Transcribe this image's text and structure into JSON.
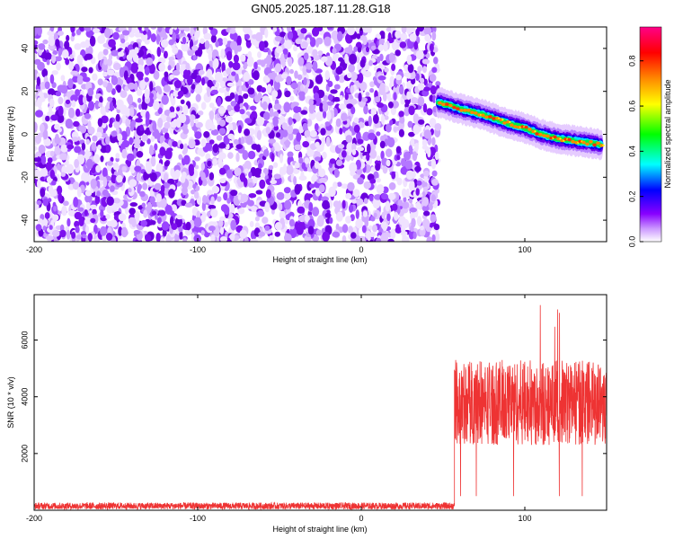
{
  "title": "GN05.2025.187.11.28.G18",
  "chart_data": [
    {
      "type": "heatmap",
      "title": "GN05.2025.187.11.28.G18",
      "xlabel": "Height of straight line (km)",
      "ylabel": "Frequency (Hz)",
      "xlim": [
        -200,
        150
      ],
      "ylim": [
        -50,
        50
      ],
      "x_ticks": [
        -200,
        -100,
        0,
        100
      ],
      "x_tick_labels": [
        "-200",
        "-100",
        "0",
        "100"
      ],
      "y_ticks": [
        -40,
        -20,
        0,
        20,
        40
      ],
      "y_tick_labels": [
        "-40",
        "-20",
        "0",
        "20",
        "40"
      ],
      "noise_region_x": [
        -200,
        47
      ],
      "signal_ridge": {
        "x": [
          47,
          60,
          75,
          90,
          100,
          110,
          120,
          130,
          140,
          147
        ],
        "y": [
          15,
          12,
          9,
          5,
          3,
          0,
          -2,
          -3,
          -4,
          -5
        ]
      },
      "colorbar": {
        "label": "Normalized spectral amplitude",
        "range": [
          0,
          0.95
        ],
        "ticks": [
          0,
          0.2,
          0.4,
          0.6,
          0.8
        ],
        "tick_labels": [
          "0.0",
          "0.2",
          "0.4",
          "0.6",
          "0.8"
        ],
        "colors": [
          "#ffffff",
          "#8800ff",
          "#0000ff",
          "#00ffff",
          "#00ff00",
          "#ffff00",
          "#ff8800",
          "#ff0000",
          "#ff0088"
        ]
      },
      "grid": false
    },
    {
      "type": "line",
      "xlabel": "Height of straight line (km)",
      "ylabel": "SNR (10 * v/v)",
      "xlim": [
        -200,
        150
      ],
      "ylim": [
        0,
        7600
      ],
      "x_ticks": [
        -200,
        -100,
        0,
        100
      ],
      "x_tick_labels": [
        "-200",
        "-100",
        "0",
        "100"
      ],
      "y_ticks": [
        2000,
        4000,
        6000
      ],
      "y_tick_labels": [
        "2000",
        "4000",
        "6000"
      ],
      "color": "#ee3333",
      "segments": [
        {
          "x_range": [
            -200,
            57
          ],
          "mean": 150,
          "spread": 120
        },
        {
          "x_range": [
            57,
            150
          ],
          "mean": 3800,
          "spread": 1500,
          "max": 7600,
          "min": 500
        }
      ],
      "grid": false
    }
  ]
}
